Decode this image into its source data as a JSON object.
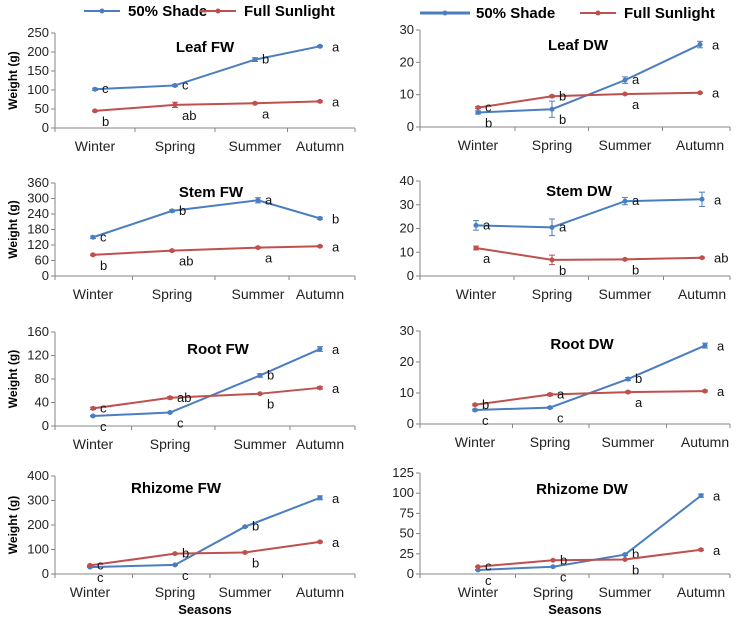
{
  "chart_data": [
    {
      "type": "line",
      "title": "Leaf FW",
      "ylabel": "Weight (g)",
      "categories": [
        "Winter",
        "Spring",
        "Summer",
        "Autumn"
      ],
      "ylim": [
        0,
        250
      ],
      "yticks": [
        0,
        50,
        100,
        150,
        200,
        250
      ],
      "series": [
        {
          "name": "50% Shade",
          "values": [
            102,
            112,
            180,
            215
          ],
          "err": [
            3,
            3,
            5,
            2
          ],
          "labels": [
            "c",
            "c",
            "b",
            "a"
          ]
        },
        {
          "name": "Full Sunlight",
          "values": [
            45,
            61,
            65,
            70
          ],
          "err": [
            2,
            7,
            2,
            2
          ],
          "labels": [
            "b",
            "ab",
            "a",
            "a"
          ]
        }
      ]
    },
    {
      "type": "line",
      "title": "Leaf DW",
      "ylabel": "",
      "categories": [
        "Winter",
        "Spring",
        "Summer",
        "Autumn"
      ],
      "ylim": [
        0,
        30
      ],
      "yticks": [
        0,
        10,
        20,
        30
      ],
      "series": [
        {
          "name": "50% Shade",
          "values": [
            4.5,
            5.5,
            14.5,
            25.5
          ],
          "err": [
            0.5,
            2.5,
            1,
            1
          ],
          "labels": [
            "b",
            "b",
            "a",
            "a"
          ]
        },
        {
          "name": "Full Sunlight",
          "values": [
            6,
            9.5,
            10.2,
            10.6
          ],
          "err": [
            0.3,
            0.3,
            0.2,
            0.2
          ],
          "labels": [
            "c",
            "b",
            "a",
            "a"
          ]
        }
      ]
    },
    {
      "type": "line",
      "title": "Stem FW",
      "ylabel": "Weight (g)",
      "categories": [
        "Winter",
        "Spring",
        "Summer",
        "Autumn"
      ],
      "ylim": [
        0,
        360
      ],
      "yticks": [
        0,
        60,
        120,
        180,
        240,
        300,
        360
      ],
      "series": [
        {
          "name": "50% Shade",
          "values": [
            150,
            252,
            293,
            223
          ],
          "err": [
            5,
            4,
            10,
            4
          ],
          "labels": [
            "c",
            "b",
            "a",
            "b"
          ]
        },
        {
          "name": "Full Sunlight",
          "values": [
            82,
            98,
            110,
            115
          ],
          "err": [
            3,
            3,
            3,
            3
          ],
          "labels": [
            "b",
            "ab",
            "a",
            "a"
          ]
        }
      ]
    },
    {
      "type": "line",
      "title": "Stem DW",
      "ylabel": "",
      "categories": [
        "Winter",
        "Spring",
        "Summer",
        "Autumn"
      ],
      "ylim": [
        0,
        40
      ],
      "yticks": [
        0,
        10,
        20,
        30,
        40
      ],
      "series": [
        {
          "name": "50% Shade",
          "values": [
            21.3,
            20.5,
            31.5,
            32.3
          ],
          "err": [
            2,
            3.5,
            1.5,
            3
          ],
          "labels": [
            "a",
            "a",
            "a",
            "a"
          ]
        },
        {
          "name": "Full Sunlight",
          "values": [
            11.8,
            6.8,
            7,
            7.7
          ],
          "err": [
            0.8,
            2,
            0.3,
            0.3
          ],
          "labels": [
            "a",
            "b",
            "b",
            "ab"
          ]
        }
      ]
    },
    {
      "type": "line",
      "title": "Root FW",
      "ylabel": "Weight (g)",
      "categories": [
        "Winter",
        "Spring",
        "Summer",
        "Autumn"
      ],
      "ylim": [
        0,
        160
      ],
      "yticks": [
        0,
        40,
        80,
        120,
        160
      ],
      "series": [
        {
          "name": "50% Shade",
          "values": [
            17,
            23,
            86,
            131
          ],
          "err": [
            1,
            1,
            3,
            4
          ],
          "labels": [
            "c",
            "c",
            "b",
            "a"
          ]
        },
        {
          "name": "Full Sunlight",
          "values": [
            30,
            48,
            55,
            65
          ],
          "err": [
            2,
            2,
            1,
            2
          ],
          "labels": [
            "c",
            "ab",
            "b",
            "a"
          ]
        }
      ]
    },
    {
      "type": "line",
      "title": "Root DW",
      "ylabel": "",
      "categories": [
        "Winter",
        "Spring",
        "Summer",
        "Autumn"
      ],
      "ylim": [
        0,
        30
      ],
      "yticks": [
        0,
        10,
        20,
        30
      ],
      "series": [
        {
          "name": "50% Shade",
          "values": [
            4.5,
            5.3,
            14.5,
            25.3
          ],
          "err": [
            0.3,
            0.3,
            0.5,
            0.8
          ],
          "labels": [
            "c",
            "c",
            "b",
            "a"
          ]
        },
        {
          "name": "Full Sunlight",
          "values": [
            6.2,
            9.5,
            10.3,
            10.6
          ],
          "err": [
            0.3,
            0.4,
            0.3,
            0.3
          ],
          "labels": [
            "b",
            "a",
            "a",
            "a"
          ]
        }
      ]
    },
    {
      "type": "line",
      "title": "Rhizome FW",
      "ylabel": "Weight (g)",
      "xlabel": "Seasons",
      "categories": [
        "Winter",
        "Spring",
        "Summer",
        "Autumn"
      ],
      "ylim": [
        0,
        400
      ],
      "yticks": [
        0,
        100,
        200,
        300,
        400
      ],
      "series": [
        {
          "name": "50% Shade",
          "values": [
            28,
            37,
            193,
            311
          ],
          "err": [
            2,
            2,
            3,
            8
          ],
          "labels": [
            "c",
            "c",
            "b",
            "a"
          ]
        },
        {
          "name": "Full Sunlight",
          "values": [
            35,
            83,
            88,
            131
          ],
          "err": [
            2,
            2,
            2,
            3
          ],
          "labels": [
            "c",
            "b",
            "b",
            "a"
          ]
        }
      ]
    },
    {
      "type": "line",
      "title": "Rhizome DW",
      "ylabel": "",
      "xlabel": "Seasons",
      "categories": [
        "Winter",
        "Spring",
        "Summer",
        "Autumn"
      ],
      "ylim": [
        0,
        125
      ],
      "yticks": [
        0,
        25,
        50,
        75,
        100,
        125
      ],
      "series": [
        {
          "name": "50% Shade",
          "values": [
            5,
            9,
            24,
            97
          ],
          "err": [
            0.5,
            0.5,
            1,
            2
          ],
          "labels": [
            "c",
            "c",
            "b",
            "a"
          ]
        },
        {
          "name": "Full Sunlight",
          "values": [
            9,
            17,
            18,
            30
          ],
          "err": [
            0.5,
            0.5,
            0.5,
            1
          ],
          "labels": [
            "c",
            "b",
            "b",
            "a"
          ]
        }
      ]
    }
  ],
  "legends": [
    {
      "items": [
        {
          "name": "50% Shade"
        },
        {
          "name": "Full Sunlight"
        }
      ]
    },
    {
      "items": [
        {
          "name": "50% Shade"
        },
        {
          "name": "Full Sunlight"
        }
      ]
    }
  ],
  "colors": {
    "shade": "#4A7EC0",
    "sun": "#C0504D",
    "axis": "#868686"
  }
}
